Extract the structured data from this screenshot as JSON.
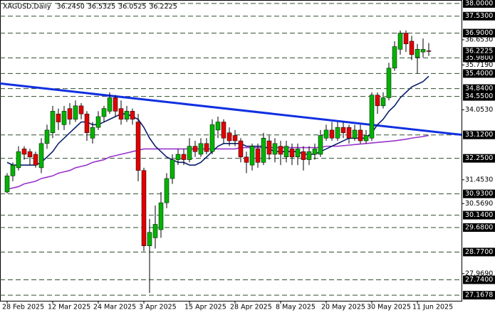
{
  "chart_data": {
    "type": "candlestick",
    "header": {
      "text": "XAGUSD,Daily",
      "value_labels": [
        "36.2450",
        "36.5325",
        "36.0525",
        "36.2225"
      ]
    },
    "categories": [
      "28 Feb 2025",
      null,
      null,
      null,
      null,
      null,
      null,
      null,
      "12 Mar 2025",
      null,
      null,
      null,
      null,
      null,
      null,
      null,
      "24 Mar 2025",
      null,
      null,
      null,
      null,
      null,
      null,
      null,
      "3 Apr 2025",
      null,
      null,
      null,
      null,
      null,
      null,
      null,
      "15 Apr 2025",
      null,
      null,
      null,
      null,
      null,
      null,
      null,
      "28 Apr 2025",
      null,
      null,
      null,
      null,
      null,
      null,
      null,
      "8 May 2025",
      null,
      null,
      null,
      null,
      null,
      null,
      null,
      "20 May 2025",
      null,
      null,
      null,
      null,
      null,
      null,
      null,
      "30 May 2025",
      null,
      null,
      null,
      null,
      null,
      null,
      null,
      "11 Jun 2025",
      null,
      null
    ],
    "open": [
      31.0,
      31.6,
      31.9,
      32.6,
      32.5,
      32.4,
      31.9,
      32.8,
      33.2,
      33.9,
      33.5,
      34.1,
      33.7,
      34.2,
      33.9,
      33.0,
      33.4,
      33.8,
      34.0,
      34.5,
      34.1,
      33.7,
      34.0,
      33.6,
      31.8,
      29.0,
      29.3,
      29.6,
      30.6,
      31.5,
      32.2,
      32.4,
      32.2,
      32.7,
      32.4,
      32.8,
      32.5,
      33.3,
      33.6,
      33.2,
      33.1,
      32.9,
      32.3,
      32.0,
      32.6,
      32.1,
      32.9,
      32.4,
      32.7,
      32.3,
      32.6,
      32.3,
      32.5,
      32.2,
      32.4,
      32.4,
      33.0,
      33.3,
      33.0,
      33.4,
      33.4,
      33.0,
      33.3,
      32.9,
      33.0,
      34.6,
      34.2,
      34.5,
      35.6,
      36.3,
      36.9,
      36.6,
      36.0,
      36.2,
      36.245
    ],
    "high": [
      31.7,
      32.1,
      32.7,
      32.7,
      32.6,
      32.5,
      33.0,
      33.5,
      34.2,
      34.1,
      34.2,
      34.3,
      34.4,
      34.3,
      34.0,
      33.6,
      34.0,
      34.2,
      34.7,
      34.6,
      34.4,
      34.2,
      34.1,
      33.9,
      31.9,
      30.0,
      30.5,
      31.0,
      31.7,
      32.4,
      32.6,
      32.6,
      33.0,
      32.9,
      33.0,
      33.0,
      33.7,
      33.8,
      33.7,
      33.4,
      33.3,
      33.0,
      32.5,
      32.8,
      32.8,
      33.2,
      33.1,
      33.0,
      32.9,
      32.9,
      32.8,
      32.8,
      32.7,
      32.7,
      32.8,
      33.3,
      33.5,
      33.6,
      33.6,
      33.6,
      33.5,
      33.5,
      33.5,
      33.3,
      34.7,
      34.7,
      34.7,
      35.8,
      36.6,
      37.0,
      37.0,
      36.8,
      36.5,
      36.7,
      36.5325
    ],
    "low": [
      30.95,
      31.4,
      31.8,
      32.2,
      32.0,
      31.9,
      31.7,
      32.6,
      33.0,
      33.3,
      33.3,
      33.5,
      33.6,
      33.7,
      32.9,
      32.8,
      33.3,
      33.6,
      33.9,
      33.8,
      33.5,
      33.6,
      33.5,
      31.4,
      28.8,
      27.25,
      28.9,
      29.3,
      30.4,
      31.3,
      32.0,
      32.0,
      32.1,
      32.3,
      32.3,
      32.4,
      32.4,
      33.0,
      32.8,
      32.7,
      32.7,
      32.1,
      31.7,
      31.8,
      31.9,
      32.0,
      32.2,
      32.1,
      32.0,
      32.1,
      32.0,
      32.0,
      31.8,
      32.0,
      32.2,
      32.3,
      32.9,
      32.9,
      32.9,
      33.0,
      32.8,
      32.9,
      32.8,
      32.8,
      32.9,
      33.9,
      34.1,
      34.4,
      35.5,
      36.1,
      36.2,
      35.9,
      35.4,
      36.0,
      36.0525
    ],
    "close": [
      31.6,
      32.0,
      32.5,
      32.4,
      32.3,
      32.0,
      32.8,
      33.3,
      34.0,
      33.6,
      34.0,
      33.7,
      34.2,
      33.9,
      33.2,
      33.4,
      33.8,
      34.1,
      34.5,
      34.0,
      33.7,
      34.0,
      33.7,
      31.8,
      29.0,
      29.5,
      29.8,
      30.6,
      31.5,
      32.2,
      32.4,
      32.2,
      32.7,
      32.5,
      32.8,
      32.5,
      33.5,
      33.6,
      33.0,
      32.9,
      32.9,
      32.3,
      32.1,
      32.7,
      32.1,
      33.0,
      32.4,
      32.8,
      32.4,
      32.7,
      32.3,
      32.6,
      32.2,
      32.5,
      32.6,
      33.1,
      33.3,
      33.0,
      33.4,
      33.2,
      33.0,
      33.3,
      32.9,
      33.1,
      34.6,
      34.2,
      34.5,
      35.6,
      36.4,
      36.9,
      36.5,
      36.1,
      36.3,
      36.3,
      36.2225
    ],
    "up_color": "#00b400",
    "down_color": "#e00000",
    "ma_fast": {
      "color": "#0b1f6e",
      "values": [
        32.1,
        32.0,
        32.0,
        32.0,
        32.0,
        32.0,
        32.1,
        32.3,
        32.5,
        32.8,
        33.0,
        33.2,
        33.4,
        33.6,
        33.6,
        33.5,
        33.5,
        33.6,
        33.7,
        33.8,
        33.9,
        33.9,
        33.8,
        33.7,
        33.4,
        33.0,
        32.7,
        32.5,
        32.3,
        32.2,
        32.1,
        32.1,
        32.0,
        32.0,
        32.1,
        32.3,
        32.5,
        32.7,
        32.8,
        32.8,
        32.8,
        32.8,
        32.7,
        32.7,
        32.7,
        32.7,
        32.6,
        32.5,
        32.5,
        32.5,
        32.5,
        32.5,
        32.4,
        32.4,
        32.4,
        32.5,
        32.6,
        32.7,
        32.8,
        32.9,
        33.0,
        33.0,
        33.0,
        33.0,
        33.2,
        33.5,
        33.7,
        34.0,
        34.2,
        34.5,
        34.7,
        34.9,
        35.0,
        35.1,
        35.3
      ]
    },
    "ma_slow": {
      "color": "#9933cc",
      "values": [
        31.1,
        31.15,
        31.2,
        31.3,
        31.35,
        31.4,
        31.5,
        31.55,
        31.6,
        31.7,
        31.75,
        31.8,
        31.9,
        31.95,
        32.0,
        32.1,
        32.15,
        32.2,
        32.3,
        32.35,
        32.4,
        32.45,
        32.5,
        32.55,
        32.6,
        32.6,
        32.6,
        32.6,
        32.6,
        32.6,
        32.6,
        32.6,
        32.6,
        32.6,
        32.6,
        32.6,
        32.6,
        32.6,
        32.6,
        32.6,
        32.6,
        32.65,
        32.65,
        32.65,
        32.65,
        32.65,
        32.65,
        32.65,
        32.65,
        32.65,
        32.65,
        32.65,
        32.65,
        32.65,
        32.65,
        32.65,
        32.7,
        32.7,
        32.7,
        32.72,
        32.74,
        32.76,
        32.78,
        32.8,
        32.82,
        32.84,
        32.86,
        32.88,
        32.9,
        32.93,
        32.96,
        33.0,
        33.03,
        33.06,
        33.1
      ]
    },
    "trendline": {
      "color": "#1030e0",
      "x": [
        0,
        74
      ],
      "values": [
        35.0,
        33.26
      ]
    },
    "level_color": "#2f4f2f",
    "levels": [
      {
        "value": 38.0,
        "label": "38.0000"
      },
      {
        "value": 37.53,
        "label": "37.5300"
      },
      {
        "value": 36.9,
        "label": "36.9000"
      },
      {
        "value": 35.98,
        "label": "35.9800"
      },
      {
        "value": 35.4,
        "label": "35.4000"
      },
      {
        "value": 34.84,
        "label": "34.8400"
      },
      {
        "value": 34.55,
        "label": "34.5500"
      },
      {
        "value": 33.12,
        "label": "33.1200"
      },
      {
        "value": 32.25,
        "label": "32.2500"
      },
      {
        "value": 30.93,
        "label": "30.9300"
      },
      {
        "value": 30.14,
        "label": "30.1400"
      },
      {
        "value": 29.68,
        "label": "29.6800"
      },
      {
        "value": 28.77,
        "label": "28.7700"
      },
      {
        "value": 27.74,
        "label": "27.7400"
      },
      {
        "value": 27.1678,
        "label": "27.1678"
      }
    ],
    "ylim": [
      26.96,
      38.13
    ],
    "yticks": [
      {
        "value": 36.653,
        "label": "36.6530"
      },
      {
        "value": 35.719,
        "label": "35.7190"
      },
      {
        "value": 34.053,
        "label": "34.0530"
      },
      {
        "value": 31.453,
        "label": "31.4530"
      },
      {
        "value": 30.569,
        "label": "30.5690"
      },
      {
        "value": 27.969,
        "label": "27.9690"
      }
    ]
  }
}
